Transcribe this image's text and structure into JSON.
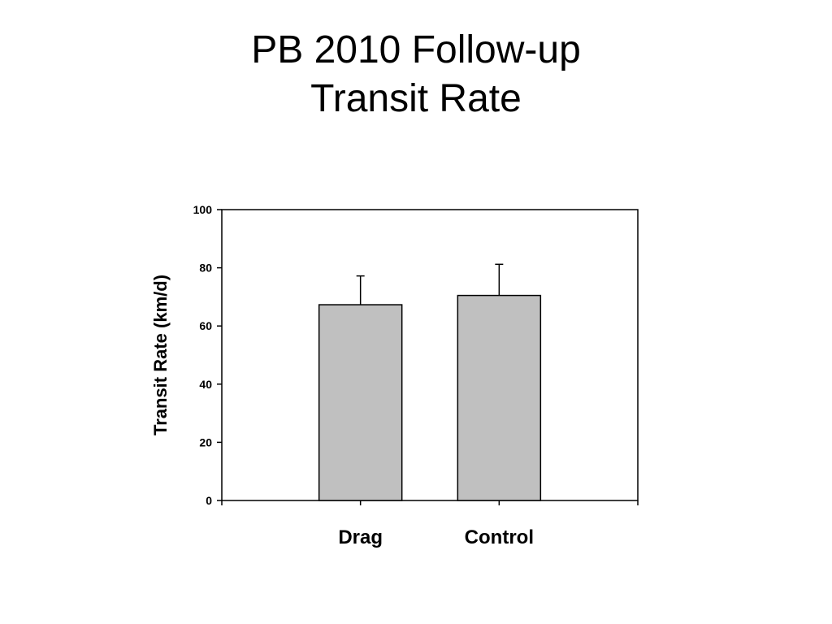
{
  "slide": {
    "title_line1": "PB 2010 Follow-up",
    "title_line2": "Transit Rate"
  },
  "chart_data": {
    "type": "bar",
    "categories": [
      "Drag",
      "Control"
    ],
    "values": [
      67.3,
      70.5
    ],
    "error_upper": [
      77.2,
      81.2
    ],
    "xlabel": "",
    "ylabel": "Transit Rate (km/d)",
    "ylim": [
      0,
      100
    ],
    "yticks": [
      0,
      20,
      40,
      60,
      80,
      100
    ],
    "grid": false,
    "legend": "none",
    "bar_color": "#c0c0c0",
    "bar_edge_color": "#000000"
  }
}
